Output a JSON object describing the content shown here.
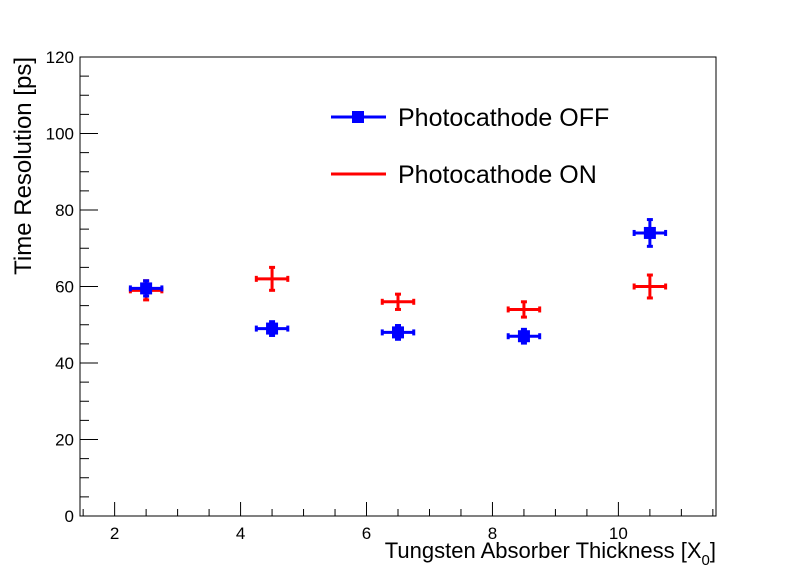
{
  "chart_data": {
    "type": "scatter",
    "xlabel": "Tungsten Absorber Thickness [X",
    "xlabel_subscript": "0",
    "xlabel_suffix": "]",
    "ylabel": "Time Resolution [ps]",
    "xlim": [
      1.45,
      11.55
    ],
    "ylim": [
      0,
      120
    ],
    "x_ticks": [
      2,
      4,
      6,
      8,
      10
    ],
    "y_ticks": [
      0,
      20,
      40,
      60,
      80,
      100,
      120
    ],
    "x_tick_labels": [
      "2",
      "4",
      "6",
      "8",
      "10"
    ],
    "y_tick_labels": [
      "0",
      "20",
      "40",
      "60",
      "80",
      "100",
      "120"
    ],
    "grid": false,
    "legend_position": "top-right",
    "series": [
      {
        "name": "Photocathode OFF",
        "color": "#0000ff",
        "marker": "square",
        "x": [
          2.5,
          4.5,
          6.5,
          8.5,
          10.5
        ],
        "y": [
          59.5,
          49,
          48,
          47,
          74
        ],
        "xerr": [
          0.25,
          0.25,
          0.25,
          0.25,
          0.25
        ],
        "yerr": [
          2,
          1.8,
          1.8,
          1.8,
          3.5
        ]
      },
      {
        "name": "Photocathode ON",
        "color": "#ff0000",
        "marker": "none",
        "x": [
          2.5,
          4.5,
          6.5,
          8.5,
          10.5
        ],
        "y": [
          59,
          62,
          56,
          54,
          60
        ],
        "xerr": [
          0.25,
          0.25,
          0.25,
          0.25,
          0.25
        ],
        "yerr": [
          2.5,
          3,
          2,
          2,
          3
        ]
      }
    ]
  }
}
